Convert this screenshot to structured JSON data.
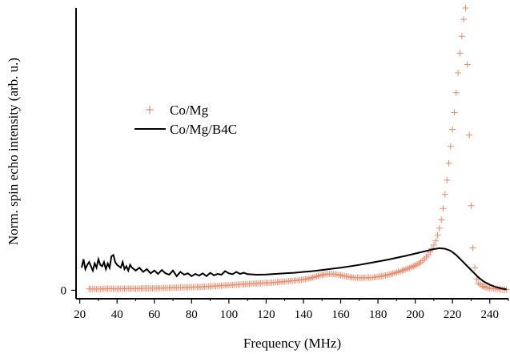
{
  "chart_data": {
    "type": "line",
    "title": "",
    "xlabel": "Frequency (MHz)",
    "ylabel": "Norm. spin echo intensity (arb. u.)",
    "xlim": [
      18,
      250
    ],
    "ylim": [
      -0.03,
      1.0
    ],
    "xticks": [
      20,
      40,
      60,
      80,
      100,
      120,
      140,
      160,
      180,
      200,
      220,
      240
    ],
    "yticks": [
      {
        "value": 0,
        "label": "0"
      }
    ],
    "grid": false,
    "legend": "upper-left",
    "series": [
      {
        "name": "Co/Mg",
        "marker": "+",
        "color": "#f08a6a",
        "x": [
          25,
          30,
          35,
          40,
          45,
          50,
          55,
          60,
          65,
          70,
          75,
          80,
          85,
          90,
          95,
          100,
          105,
          110,
          115,
          120,
          125,
          130,
          135,
          140,
          143,
          146,
          149,
          152,
          155,
          158,
          161,
          164,
          167,
          170,
          173,
          176,
          179,
          182,
          185,
          188,
          191,
          194,
          197,
          200,
          202,
          204,
          206,
          208,
          210,
          211,
          212,
          213,
          214,
          215,
          216,
          217,
          218,
          219,
          220,
          221,
          222,
          223,
          224,
          225,
          226,
          227,
          228,
          229,
          230,
          231,
          232,
          233,
          234,
          236,
          238,
          240,
          243,
          246,
          249
        ],
        "values": [
          0.005,
          0.004,
          0.006,
          0.005,
          0.006,
          0.006,
          0.007,
          0.007,
          0.008,
          0.009,
          0.01,
          0.011,
          0.012,
          0.014,
          0.016,
          0.018,
          0.02,
          0.022,
          0.024,
          0.026,
          0.028,
          0.031,
          0.034,
          0.038,
          0.042,
          0.047,
          0.053,
          0.057,
          0.058,
          0.056,
          0.052,
          0.048,
          0.045,
          0.044,
          0.044,
          0.045,
          0.047,
          0.05,
          0.054,
          0.059,
          0.065,
          0.072,
          0.079,
          0.088,
          0.095,
          0.105,
          0.118,
          0.135,
          0.16,
          0.175,
          0.195,
          0.22,
          0.25,
          0.29,
          0.34,
          0.39,
          0.45,
          0.51,
          0.57,
          0.63,
          0.7,
          0.77,
          0.84,
          0.9,
          0.96,
          1.0,
          0.8,
          0.55,
          0.3,
          0.15,
          0.08,
          0.04,
          0.025,
          0.015,
          0.01,
          0.007,
          0.005,
          0.003,
          0.002
        ]
      },
      {
        "name": "Co/Mg/B4C",
        "marker": "line",
        "color": "#000000",
        "x": [
          21,
          22,
          23,
          24,
          25,
          26,
          27,
          28,
          29,
          30,
          31,
          32,
          33,
          34,
          35,
          36,
          37,
          38,
          39,
          40,
          41,
          42,
          43,
          44,
          45,
          46,
          47,
          48,
          49,
          50,
          52,
          54,
          56,
          58,
          60,
          62,
          64,
          66,
          68,
          70,
          72,
          74,
          76,
          78,
          80,
          82,
          84,
          86,
          88,
          90,
          92,
          94,
          96,
          98,
          100,
          102,
          104,
          106,
          108,
          110,
          115,
          120,
          125,
          130,
          135,
          140,
          145,
          150,
          155,
          160,
          165,
          170,
          175,
          180,
          185,
          190,
          195,
          200,
          205,
          210,
          213,
          216,
          219,
          222,
          225,
          228,
          231,
          234,
          237,
          240,
          243,
          246,
          249
        ],
        "values": [
          0.08,
          0.11,
          0.075,
          0.09,
          0.1,
          0.085,
          0.07,
          0.095,
          0.08,
          0.11,
          0.09,
          0.085,
          0.1,
          0.075,
          0.095,
          0.08,
          0.12,
          0.125,
          0.1,
          0.09,
          0.085,
          0.08,
          0.1,
          0.075,
          0.085,
          0.07,
          0.09,
          0.08,
          0.075,
          0.07,
          0.08,
          0.065,
          0.075,
          0.06,
          0.07,
          0.058,
          0.072,
          0.06,
          0.055,
          0.07,
          0.05,
          0.065,
          0.055,
          0.06,
          0.05,
          0.058,
          0.052,
          0.06,
          0.05,
          0.062,
          0.053,
          0.058,
          0.055,
          0.068,
          0.06,
          0.057,
          0.065,
          0.058,
          0.062,
          0.057,
          0.055,
          0.056,
          0.058,
          0.06,
          0.062,
          0.065,
          0.068,
          0.072,
          0.076,
          0.08,
          0.085,
          0.09,
          0.096,
          0.102,
          0.108,
          0.115,
          0.122,
          0.13,
          0.138,
          0.146,
          0.149,
          0.147,
          0.14,
          0.125,
          0.105,
          0.085,
          0.065,
          0.045,
          0.03,
          0.02,
          0.012,
          0.007,
          0.003
        ]
      }
    ]
  }
}
